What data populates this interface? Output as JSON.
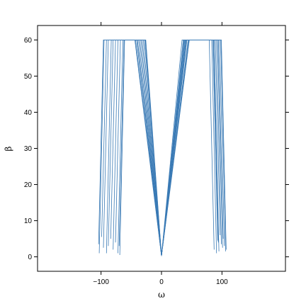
{
  "chart_data": {
    "type": "line",
    "xlabel": "ω",
    "ylabel": "β",
    "xlim": [
      -205,
      205
    ],
    "ylim": [
      -4,
      64
    ],
    "x_ticks": [
      -100,
      0,
      100
    ],
    "x_tick_labels": [
      "−100",
      "0",
      "100"
    ],
    "y_ticks": [
      0,
      10,
      20,
      30,
      40,
      50,
      60
    ],
    "y_tick_labels": [
      "0",
      "10",
      "20",
      "30",
      "40",
      "50",
      "60"
    ],
    "line_color": "#3a7ab5",
    "series": [
      {
        "x": [
          -104,
          -96,
          -88,
          -43,
          0,
          41,
          86,
          93,
          101
        ],
        "y": [
          3.5,
          60,
          60,
          60,
          0.3,
          60,
          60,
          60,
          2.5
        ]
      },
      {
        "x": [
          -103,
          -95,
          -87,
          -44,
          0,
          42,
          87,
          94,
          102
        ],
        "y": [
          1,
          60,
          60,
          60,
          0.3,
          60,
          60,
          60,
          5
        ]
      },
      {
        "x": [
          -99,
          -91,
          -83,
          -41,
          0,
          46,
          92,
          99,
          107
        ],
        "y": [
          5.5,
          60,
          60,
          60,
          0.3,
          60,
          60,
          60,
          2
        ]
      },
      {
        "x": [
          -91,
          -83,
          -75,
          -40,
          0,
          38,
          79,
          86,
          94
        ],
        "y": [
          1,
          60,
          60,
          60,
          0.3,
          60,
          60,
          60,
          4
        ]
      },
      {
        "x": [
          -88,
          -80,
          -72,
          -36,
          0,
          36,
          76,
          83,
          91
        ],
        "y": [
          3,
          60,
          60,
          60,
          0.3,
          60,
          60,
          60,
          1
        ]
      },
      {
        "x": [
          -84,
          -76,
          -68,
          -34,
          0,
          44,
          88,
          96,
          104
        ],
        "y": [
          5,
          60,
          60,
          60,
          0.3,
          60,
          60,
          60,
          3
        ]
      },
      {
        "x": [
          -80,
          -72,
          -64,
          -32,
          0,
          40,
          82,
          89,
          97
        ],
        "y": [
          2,
          60,
          60,
          60,
          0.3,
          60,
          60,
          60,
          6
        ]
      },
      {
        "x": [
          -76,
          -68,
          -60,
          -30,
          0,
          34,
          72,
          79,
          87
        ],
        "y": [
          4,
          60,
          60,
          60,
          0.3,
          60,
          60,
          60,
          2
        ]
      },
      {
        "x": [
          -72,
          -64,
          -56,
          -28,
          0,
          37,
          78,
          85,
          93
        ],
        "y": [
          1,
          60,
          60,
          60,
          0.3,
          60,
          60,
          60,
          4.5
        ]
      },
      {
        "x": [
          -70,
          -62,
          -54,
          -27,
          0,
          45,
          90,
          98,
          106
        ],
        "y": [
          3,
          60,
          60,
          60,
          0.3,
          60,
          60,
          60,
          1.5
        ]
      },
      {
        "x": [
          -69,
          -61,
          -53,
          -26,
          0,
          41,
          84,
          91,
          99
        ],
        "y": [
          0.5,
          60,
          60,
          60,
          0.3,
          60,
          60,
          60,
          3.5
        ]
      },
      {
        "x": [
          -96,
          -88,
          -80,
          -38,
          0,
          39,
          80,
          87,
          95
        ],
        "y": [
          2.5,
          60,
          60,
          60,
          0.3,
          60,
          60,
          60,
          1.5
        ]
      }
    ]
  }
}
